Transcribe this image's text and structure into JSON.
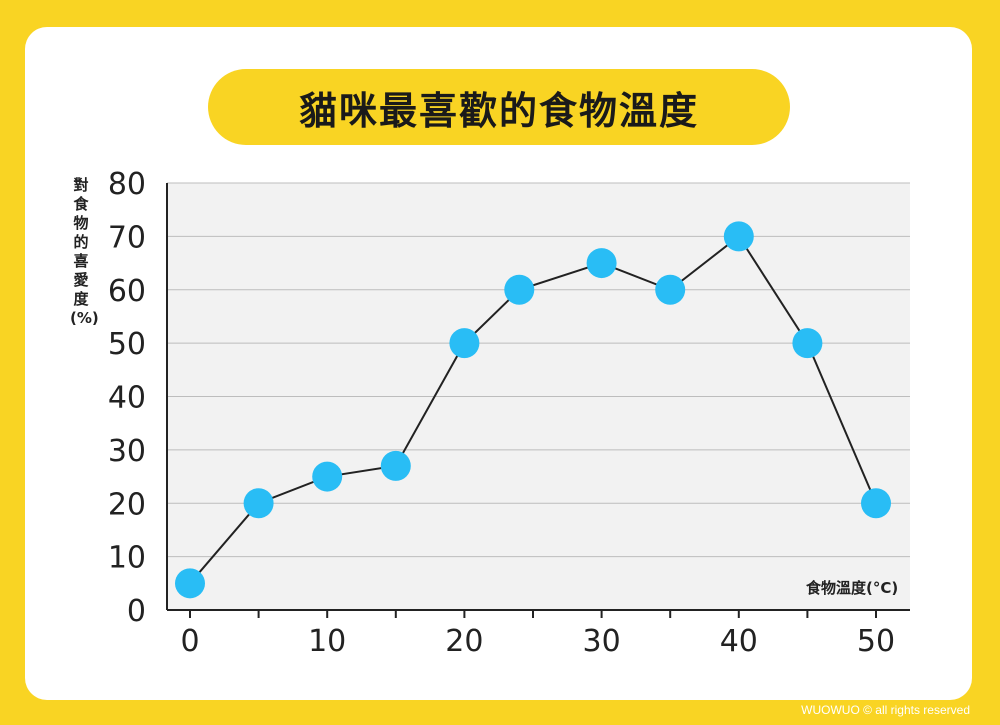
{
  "title": "貓咪最喜歡的食物溫度",
  "footer": "WUOWUO © all rights reserved",
  "colors": {
    "background": "#f9d423",
    "card": "#ffffff",
    "plot_area": "#f2f2f2",
    "marker": "#29bdf5",
    "line": "#222222"
  },
  "chart_data": {
    "type": "line",
    "title": "貓咪最喜歡的食物溫度",
    "ylabel": "對食物的喜愛度(%)",
    "xlabel": "食物溫度(°C)",
    "xlim": [
      0,
      50
    ],
    "ylim": [
      0,
      80
    ],
    "x_ticks": [
      0,
      5,
      10,
      15,
      20,
      25,
      30,
      35,
      40,
      45,
      50
    ],
    "x_tick_labels": [
      "0",
      "10",
      "20",
      "30",
      "40",
      "50"
    ],
    "y_tick_labels": [
      "0",
      "10",
      "20",
      "30",
      "40",
      "50",
      "60",
      "70",
      "80"
    ],
    "grid": true,
    "legend": "none",
    "series": [
      {
        "x": [
          0,
          5,
          10,
          15,
          20,
          24,
          30,
          35,
          40,
          45,
          50
        ],
        "values": [
          5,
          20,
          25,
          27,
          50,
          60,
          65,
          60,
          70,
          50,
          20
        ]
      }
    ]
  }
}
